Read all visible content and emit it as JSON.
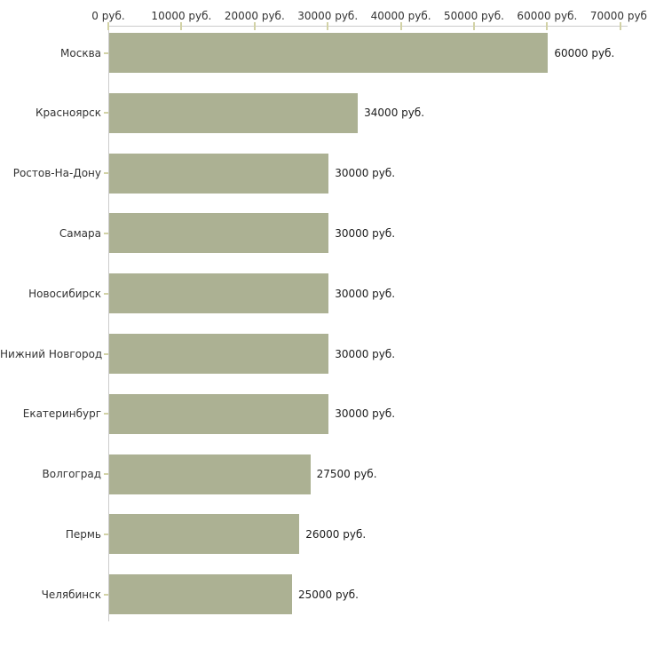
{
  "chart_data": {
    "type": "bar",
    "orientation": "horizontal",
    "title": "",
    "categories": [
      "Москва",
      "Красноярск",
      "Ростов-На-Дону",
      "Самара",
      "Новосибирск",
      "Нижний Новгород",
      "Екатеринбург",
      "Волгоград",
      "Пермь",
      "Челябинск"
    ],
    "values": [
      60000,
      34000,
      30000,
      30000,
      30000,
      30000,
      30000,
      27500,
      26000,
      25000
    ],
    "value_labels": [
      "60000 руб.",
      "34000 руб.",
      "30000 руб.",
      "30000 руб.",
      "30000 руб.",
      "30000 руб.",
      "30000 руб.",
      "27500 руб.",
      "26000 руб.",
      "25000 руб."
    ],
    "x_axis": {
      "position": "top",
      "range": [
        0,
        70000
      ],
      "tick_values": [
        0,
        10000,
        20000,
        30000,
        40000,
        50000,
        60000,
        70000
      ],
      "tick_labels": [
        "0 руб.",
        "10000 руб.",
        "20000 руб.",
        "30000 руб.",
        "40000 руб.",
        "50000 руб.",
        "60000 руб.",
        "70000 руб."
      ],
      "unit": "руб."
    },
    "grid": false,
    "legend": false,
    "colors": {
      "bar": "#acb193",
      "tick": "#d2d2a6",
      "axis": "#cccccc",
      "text": "#333333",
      "value_text": "#1c1c1c"
    }
  }
}
